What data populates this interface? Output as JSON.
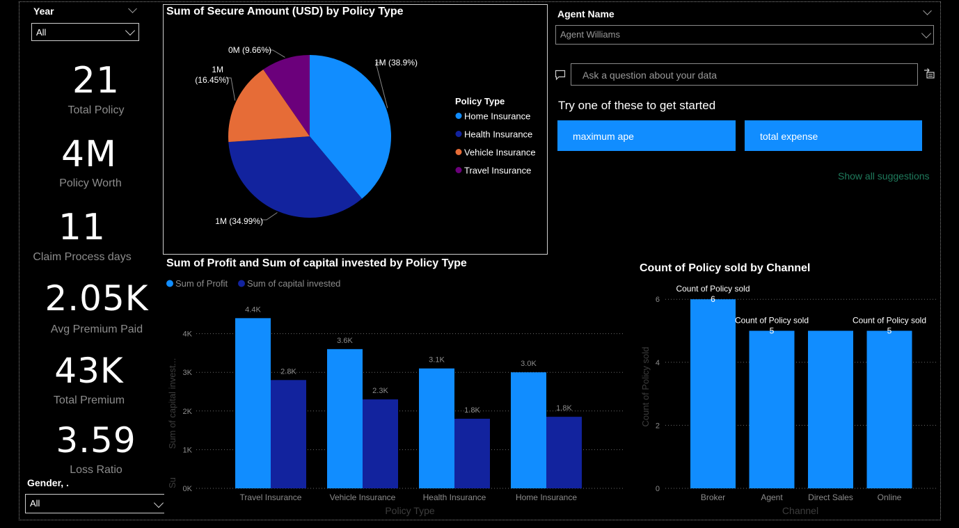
{
  "slicers": {
    "year": {
      "title": "Year",
      "value": "All"
    },
    "agent": {
      "title": "Agent Name",
      "value": "Agent Williams"
    },
    "gender": {
      "title": "Gender, .",
      "value": "All"
    }
  },
  "kpis": [
    {
      "value": "21",
      "label": "Total Policy"
    },
    {
      "value": "4M",
      "label": "Policy Worth"
    },
    {
      "value": "11",
      "label": "Claim Process days"
    },
    {
      "value": "2.05K",
      "label": "Avg Premium Paid"
    },
    {
      "value": "43K",
      "label": "Total Premium"
    },
    {
      "value": "3.59",
      "label": "Loss Ratio"
    }
  ],
  "qa": {
    "placeholder": "Ask a question about your data",
    "prompt": "Try one of these to get started",
    "suggestions": [
      "maximum ape",
      "total expense"
    ],
    "show_all": "Show all suggestions"
  },
  "colors": {
    "home": "#118dff",
    "health": "#12239e",
    "vehicle": "#e66c37",
    "travel": "#6b007b",
    "accent": "#118dff",
    "show_all_link": "#1f7a5c"
  },
  "chart_data": [
    {
      "type": "pie",
      "title": "Sum of Secure Amount (USD) by Policy Type",
      "legend_title": "Policy Type",
      "legend_position": "right",
      "slices": [
        {
          "name": "Home Insurance",
          "pct": 38.9,
          "label": "1M (38.9%)"
        },
        {
          "name": "Health Insurance",
          "pct": 34.99,
          "label": "1M (34.99%)"
        },
        {
          "name": "Vehicle Insurance",
          "pct": 16.45,
          "label_lines": [
            "1M",
            "(16.45%)"
          ]
        },
        {
          "name": "Travel Insurance",
          "pct": 9.66,
          "label": "0M (9.66%)"
        }
      ]
    },
    {
      "type": "bar",
      "title": "Sum of Profit and Sum of capital invested by Policy Type",
      "xlabel": "Policy Type",
      "ylabel": "Sum of capital invest...",
      "ylabel_fragment": "Su",
      "ylim": [
        0,
        5000
      ],
      "yticks": [
        "0K",
        "1K",
        "2K",
        "3K",
        "4K"
      ],
      "categories": [
        "Travel Insurance",
        "Vehicle Insurance",
        "Health Insurance",
        "Home Insurance"
      ],
      "series": [
        {
          "name": "Sum of Profit",
          "values": [
            4400,
            3600,
            3100,
            3000
          ],
          "labels": [
            "4.4K",
            "3.6K",
            "3.1K",
            "3.0K"
          ]
        },
        {
          "name": "Sum of capital invested",
          "values": [
            2800,
            2300,
            1800,
            1850
          ],
          "labels": [
            "2.8K",
            "2.3K",
            "1.8K",
            "1.8K"
          ]
        }
      ],
      "legend_position": "top-left",
      "grid": true
    },
    {
      "type": "bar",
      "title": "Count of Policy sold by Channel",
      "xlabel": "Channel",
      "ylabel": "Count of Policy sold",
      "ylim": [
        0,
        6.2
      ],
      "yticks": [
        "0",
        "2",
        "4",
        "6"
      ],
      "categories": [
        "Broker",
        "Agent",
        "Direct Sales",
        "Online"
      ],
      "values": [
        6,
        5,
        5,
        5
      ],
      "data_labels": [
        {
          "name": "Count of Policy sold",
          "value": "6"
        },
        {
          "name": "Count of Policy sold",
          "value": "5"
        },
        null,
        {
          "name": "Count of Policy sold",
          "value": "5"
        }
      ],
      "grid": true
    }
  ]
}
